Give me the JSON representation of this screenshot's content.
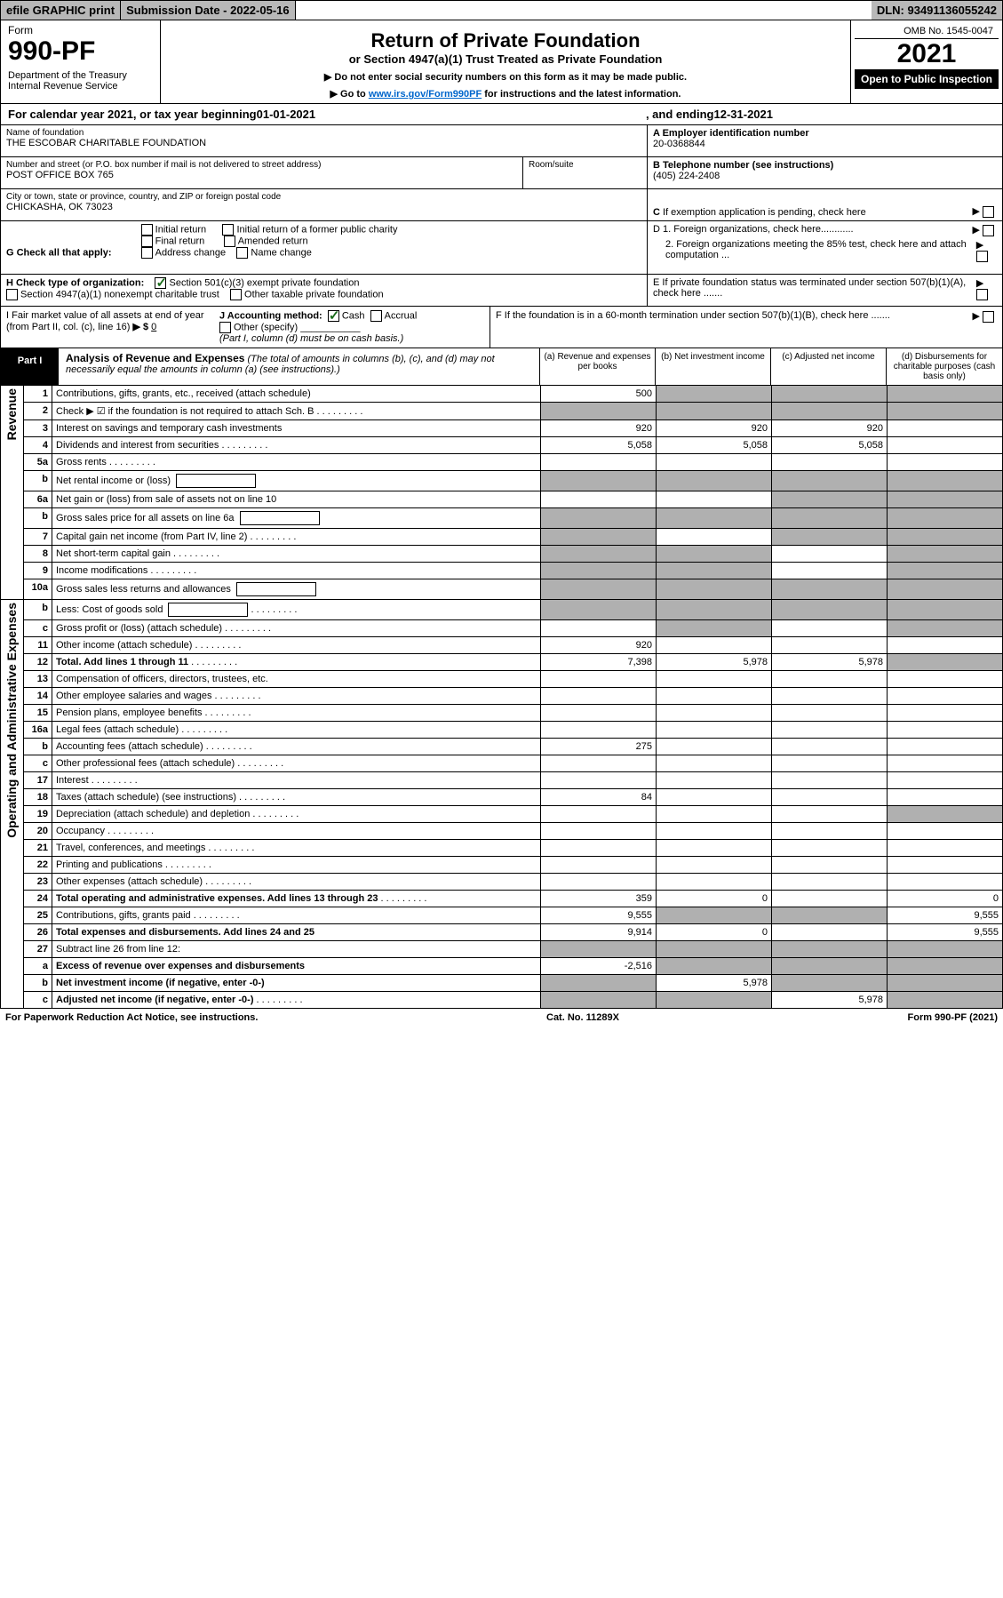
{
  "topbar": {
    "efile": "efile GRAPHIC print",
    "subdate_label": "Submission Date - ",
    "subdate": "2022-05-16",
    "dln_label": "DLN: ",
    "dln": "93491136055242"
  },
  "header": {
    "form_word": "Form",
    "form_no": "990-PF",
    "dept": "Department of the Treasury\nInternal Revenue Service",
    "title": "Return of Private Foundation",
    "subtitle": "or Section 4947(a)(1) Trust Treated as Private Foundation",
    "instr1": "▶ Do not enter social security numbers on this form as it may be made public.",
    "instr2_pre": "▶ Go to ",
    "instr2_link": "www.irs.gov/Form990PF",
    "instr2_post": " for instructions and the latest information.",
    "omb": "OMB No. 1545-0047",
    "year": "2021",
    "otp": "Open to Public Inspection"
  },
  "calendar": {
    "pre": "For calendar year 2021, or tax year beginning ",
    "start": "01-01-2021",
    "mid": ", and ending ",
    "end": "12-31-2021"
  },
  "info": {
    "name_label": "Name of foundation",
    "name": "THE ESCOBAR CHARITABLE FOUNDATION",
    "street_label": "Number and street (or P.O. box number if mail is not delivered to street address)",
    "street": "POST OFFICE BOX 765",
    "room_label": "Room/suite",
    "city_label": "City or town, state or province, country, and ZIP or foreign postal code",
    "city": "CHICKASHA, OK  73023",
    "a_label": "A Employer identification number",
    "a_val": "20-0368844",
    "b_label": "B Telephone number (see instructions)",
    "b_val": "(405) 224-2408",
    "c_label": "C If exemption application is pending, check here",
    "d1_label": "D 1. Foreign organizations, check here............",
    "d2_label": "2. Foreign organizations meeting the 85% test, check here and attach computation ...",
    "e_label": "E If private foundation status was terminated under section 507(b)(1)(A), check here .......",
    "f_label": "F If the foundation is in a 60-month termination under section 507(b)(1)(B), check here .......",
    "g_label": "G Check all that apply:",
    "g_opts": [
      "Initial return",
      "Final return",
      "Address change",
      "Initial return of a former public charity",
      "Amended return",
      "Name change"
    ],
    "h_label": "H Check type of organization:",
    "h_opt1": "Section 501(c)(3) exempt private foundation",
    "h_opt2": "Section 4947(a)(1) nonexempt charitable trust",
    "h_opt3": "Other taxable private foundation",
    "i_label": "I Fair market value of all assets at end of year (from Part II, col. (c), line 16)",
    "i_val": "0",
    "j_label": "J Accounting method:",
    "j_cash": "Cash",
    "j_accrual": "Accrual",
    "j_other": "Other (specify)",
    "j_note": "(Part I, column (d) must be on cash basis.)"
  },
  "part1": {
    "label": "Part I",
    "title": "Analysis of Revenue and Expenses",
    "title_note": " (The total of amounts in columns (b), (c), and (d) may not necessarily equal the amounts in column (a) (see instructions).)",
    "col_a": "(a)  Revenue and expenses per books",
    "col_b": "(b)  Net investment income",
    "col_c": "(c)  Adjusted net income",
    "col_d": "(d)  Disbursements for charitable purposes (cash basis only)",
    "side_rev": "Revenue",
    "side_exp": "Operating and Administrative Expenses"
  },
  "rows": [
    {
      "n": "1",
      "d": "Contributions, gifts, grants, etc., received (attach schedule)",
      "a": "500",
      "b": "",
      "c": "",
      "ds": [
        "b",
        "c",
        "d"
      ]
    },
    {
      "n": "2",
      "d": "Check ▶ ☑ if the foundation is not required to attach Sch. B",
      "dots": true,
      "shadeAll": true
    },
    {
      "n": "3",
      "d": "Interest on savings and temporary cash investments",
      "a": "920",
      "b": "920",
      "c": "920"
    },
    {
      "n": "4",
      "d": "Dividends and interest from securities",
      "dots": true,
      "a": "5,058",
      "b": "5,058",
      "c": "5,058"
    },
    {
      "n": "5a",
      "d": "Gross rents",
      "dots": true
    },
    {
      "n": "b",
      "d": "Net rental income or (loss)",
      "inlinebox": true,
      "shadeAll": true
    },
    {
      "n": "6a",
      "d": "Net gain or (loss) from sale of assets not on line 10",
      "ds": [
        "c",
        "d"
      ]
    },
    {
      "n": "b",
      "d": "Gross sales price for all assets on line 6a",
      "inlinebox": true,
      "shadeAll": true
    },
    {
      "n": "7",
      "d": "Capital gain net income (from Part IV, line 2)",
      "dots": true,
      "ds": [
        "a",
        "c",
        "d"
      ]
    },
    {
      "n": "8",
      "d": "Net short-term capital gain",
      "dots": true,
      "ds": [
        "a",
        "b",
        "d"
      ]
    },
    {
      "n": "9",
      "d": "Income modifications",
      "dots": true,
      "ds": [
        "a",
        "b",
        "d"
      ]
    },
    {
      "n": "10a",
      "d": "Gross sales less returns and allowances",
      "inlinebox": true,
      "shadeAll": true
    },
    {
      "n": "b",
      "d": "Less: Cost of goods sold",
      "dots": true,
      "inlinebox": true,
      "shadeAll": true
    },
    {
      "n": "c",
      "d": "Gross profit or (loss) (attach schedule)",
      "dots": true,
      "ds": [
        "b",
        "d"
      ]
    },
    {
      "n": "11",
      "d": "Other income (attach schedule)",
      "dots": true,
      "a": "920"
    },
    {
      "n": "12",
      "d": "Total. Add lines 1 through 11",
      "dots": true,
      "bold": true,
      "a": "7,398",
      "b": "5,978",
      "c": "5,978",
      "ds": [
        "d"
      ]
    },
    {
      "n": "13",
      "d": "Compensation of officers, directors, trustees, etc."
    },
    {
      "n": "14",
      "d": "Other employee salaries and wages",
      "dots": true
    },
    {
      "n": "15",
      "d": "Pension plans, employee benefits",
      "dots": true
    },
    {
      "n": "16a",
      "d": "Legal fees (attach schedule)",
      "dots": true
    },
    {
      "n": "b",
      "d": "Accounting fees (attach schedule)",
      "dots": true,
      "a": "275"
    },
    {
      "n": "c",
      "d": "Other professional fees (attach schedule)",
      "dots": true
    },
    {
      "n": "17",
      "d": "Interest",
      "dots": true
    },
    {
      "n": "18",
      "d": "Taxes (attach schedule) (see instructions)",
      "dots": true,
      "a": "84"
    },
    {
      "n": "19",
      "d": "Depreciation (attach schedule) and depletion",
      "dots": true,
      "ds": [
        "d"
      ]
    },
    {
      "n": "20",
      "d": "Occupancy",
      "dots": true
    },
    {
      "n": "21",
      "d": "Travel, conferences, and meetings",
      "dots": true
    },
    {
      "n": "22",
      "d": "Printing and publications",
      "dots": true
    },
    {
      "n": "23",
      "d": "Other expenses (attach schedule)",
      "dots": true
    },
    {
      "n": "24",
      "d": "Total operating and administrative expenses. Add lines 13 through 23",
      "dots": true,
      "bold": true,
      "a": "359",
      "b": "0",
      "dv": "0"
    },
    {
      "n": "25",
      "d": "Contributions, gifts, grants paid",
      "dots": true,
      "a": "9,555",
      "dv": "9,555",
      "ds": [
        "b",
        "c"
      ]
    },
    {
      "n": "26",
      "d": "Total expenses and disbursements. Add lines 24 and 25",
      "bold": true,
      "a": "9,914",
      "b": "0",
      "dv": "9,555"
    },
    {
      "n": "27",
      "d": "Subtract line 26 from line 12:",
      "bold": false,
      "ds": [
        "a",
        "b",
        "c",
        "d"
      ]
    },
    {
      "n": "a",
      "d": "Excess of revenue over expenses and disbursements",
      "bold": true,
      "a": "-2,516",
      "ds": [
        "b",
        "c",
        "d"
      ]
    },
    {
      "n": "b",
      "d": "Net investment income (if negative, enter -0-)",
      "bold": true,
      "b": "5,978",
      "ds": [
        "a",
        "c",
        "d"
      ]
    },
    {
      "n": "c",
      "d": "Adjusted net income (if negative, enter -0-)",
      "dots": true,
      "bold": true,
      "c": "5,978",
      "ds": [
        "a",
        "b",
        "d"
      ]
    }
  ],
  "footer": {
    "left": "For Paperwork Reduction Act Notice, see instructions.",
    "mid": "Cat. No. 11289X",
    "right": "Form 990-PF (2021)"
  }
}
